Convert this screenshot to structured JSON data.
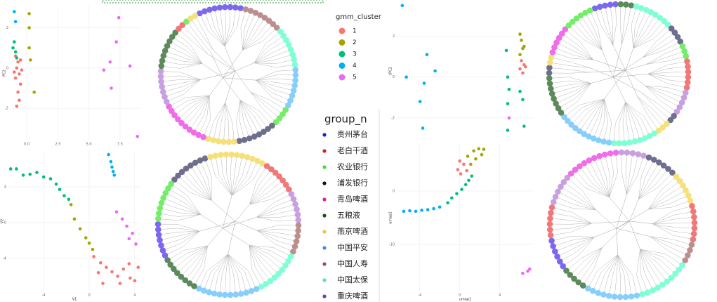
{
  "chart_data": [
    {
      "type": "scatter",
      "ylabel": "PC2",
      "xlim": [
        -1.3,
        9.14
      ],
      "ylim": [
        -3.6,
        3.1
      ],
      "xticks": [
        {
          "value": 0,
          "label": "0.0"
        },
        2.5,
        {
          "value": 5,
          "label": "5.0"
        },
        7.5
      ],
      "yticks": [
        -2,
        0,
        2
      ],
      "grid": true,
      "series": [
        {
          "color": "#F8766D",
          "x": [
            -0.9,
            -0.7,
            -0.8,
            -0.6,
            -0.9,
            -0.5,
            -0.7,
            -0.6,
            -0.8,
            -0.4,
            -1.0,
            -0.5
          ],
          "y": [
            0.6,
            0.3,
            0.0,
            -0.3,
            -0.5,
            -0.8,
            -1.2,
            -1.6,
            -1.9,
            -0.1,
            -0.2,
            0.4
          ]
        },
        {
          "color": "#A3A500",
          "x": [
            0.2,
            0.2,
            0.2,
            0.3,
            0.6
          ],
          "y": [
            2.7,
            2.0,
            1.0,
            0.4,
            -1.2
          ]
        },
        {
          "color": "#00BF7D",
          "x": [
            -1.0,
            -0.9,
            -1.1,
            -0.8
          ],
          "y": [
            1.3,
            0.8,
            1.0,
            0.5
          ]
        },
        {
          "color": "#00B0F6",
          "x": [
            -1.0,
            -0.9
          ],
          "y": [
            2.8,
            2.3
          ]
        },
        {
          "color": "#E76BF3",
          "x": [
            7.4,
            7.2,
            6.2,
            6.7,
            8.3,
            6.8,
            8.9
          ],
          "y": [
            2.5,
            1.3,
            -0.1,
            0.3,
            0.1,
            -1.0,
            -3.4
          ]
        }
      ]
    },
    {
      "type": "scatter",
      "xlabel": "V1",
      "ylabel": "V2",
      "xlim": [
        -7.1,
        4.5
      ],
      "ylim": [
        -7.7,
        8.0
      ],
      "xticks": [
        -4,
        0,
        4
      ],
      "yticks": [
        -4,
        0,
        4
      ],
      "grid": true,
      "series": [
        {
          "color": "#F8766D",
          "x": [
            0.4,
            1.0,
            1.5,
            2.0,
            2.5,
            3.0,
            3.5,
            4.0,
            1.2,
            2.7,
            3.6,
            0.8,
            4.3
          ],
          "y": [
            -3.8,
            -4.5,
            -5.0,
            -5.5,
            -6.0,
            -5.2,
            -4.6,
            -6.5,
            -6.8,
            -6.8,
            -6.2,
            -5.6,
            -5.0
          ]
        },
        {
          "color": "#A3A500",
          "x": [
            -1.6,
            -1.3,
            -0.8,
            -0.3,
            0.0,
            0.3
          ],
          "y": [
            2.0,
            0.4,
            -0.7,
            -1.7,
            -2.3,
            -3.0
          ]
        },
        {
          "color": "#00BF7D",
          "x": [
            -6.9,
            -6.4,
            -5.8,
            -5.2,
            -4.6,
            -4.0,
            -3.4,
            -2.9,
            -2.6,
            -2.2,
            -1.8
          ],
          "y": [
            6.0,
            6.0,
            5.3,
            5.4,
            5.6,
            5.1,
            4.9,
            4.3,
            3.7,
            3.0,
            2.6
          ]
        },
        {
          "color": "#00B0F6",
          "x": [
            1.7,
            1.9,
            2.0,
            2.1,
            2.2
          ],
          "y": [
            7.6,
            6.8,
            6.2,
            5.7,
            5.3
          ]
        },
        {
          "color": "#E76BF3",
          "x": [
            2.4,
            2.9,
            3.3,
            3.8,
            4.1,
            3.5
          ],
          "y": [
            1.2,
            0.4,
            -0.4,
            -1.2,
            -2.4,
            -1.8
          ]
        }
      ]
    },
    {
      "type": "scatter",
      "ylabel": "tPC2",
      "xlim": [
        0,
        10
      ],
      "ylim": [
        -3.1,
        3.7
      ],
      "yticks": [
        -2,
        0,
        2
      ],
      "grid": true,
      "series": [
        {
          "color": "#F8766D",
          "x": [
            9.1,
            9.3,
            9.0,
            9.2,
            9.4
          ],
          "y": [
            0.8,
            0.6,
            0.4,
            0.2,
            0.5
          ]
        },
        {
          "color": "#A3A500",
          "x": [
            9.0,
            9.1,
            9.2,
            9.0,
            9.3
          ],
          "y": [
            2.1,
            1.8,
            1.4,
            1.1,
            1.5
          ]
        },
        {
          "color": "#00BF7D",
          "x": [
            8.0,
            8.1,
            8.2,
            8.1,
            9.0,
            9.2,
            9.3,
            8.1
          ],
          "y": [
            1.3,
            0.0,
            -0.6,
            -1.3,
            -0.7,
            -1.1,
            -2.4,
            -2.6
          ]
        },
        {
          "color": "#00B0F6",
          "x": [
            0.4,
            0.7,
            2.2,
            2.8,
            2.0,
            1.7,
            1.9
          ],
          "y": [
            3.5,
            0.0,
            1.1,
            0.3,
            -0.3,
            -1.2,
            -2.5
          ]
        },
        {
          "color": "#E76BF3",
          "x": [
            8.2
          ],
          "y": [
            -2.0
          ]
        }
      ]
    },
    {
      "type": "scatter",
      "xlabel": "umap1",
      "ylabel": "umap2",
      "xlim": [
        -6.3,
        7.4
      ],
      "ylim": [
        -18.8,
        8.8
      ],
      "xticks": [
        -4,
        0,
        4
      ],
      "yticks": [
        -10,
        0
      ],
      "grid": true,
      "series": [
        {
          "color": "#F8766D",
          "x": [
            -0.2,
            0.1,
            0.4,
            0.7,
            0.0
          ],
          "y": [
            4.0,
            3.2,
            5.0,
            3.8,
            5.6
          ]
        },
        {
          "color": "#A3A500",
          "x": [
            0.8,
            1.4,
            1.9,
            2.4,
            1.6,
            1.1,
            2.2
          ],
          "y": [
            6.5,
            7.5,
            7.9,
            7.8,
            6.0,
            5.0,
            6.8
          ]
        },
        {
          "color": "#00BF7D",
          "x": [
            -1.2,
            -0.8,
            -0.3,
            0.2,
            0.6,
            0.9,
            1.2
          ],
          "y": [
            -2.2,
            -1.3,
            -0.5,
            0.3,
            1.2,
            2.0,
            2.8
          ]
        },
        {
          "color": "#00B0F6",
          "x": [
            -5.6,
            -5.0,
            -4.4,
            -3.8,
            -3.2,
            -2.6,
            -2.0
          ],
          "y": [
            -3.8,
            -3.7,
            -3.8,
            -3.6,
            -3.5,
            -3.3,
            -3.0
          ]
        },
        {
          "color": "#E76BF3",
          "x": [
            6.3,
            6.8,
            7.0
          ],
          "y": [
            -15.4,
            -15.0,
            -14.6
          ]
        }
      ]
    }
  ],
  "leaf_colors": [
    "#7b68ee",
    "#bc8f8f",
    "#7fffd4",
    "#87cefa",
    "#74ee6a",
    "#6e6e8e",
    "#f5e07a",
    "#f06ce8",
    "#c8a0e0",
    "#5d8a5d",
    "#f07878"
  ],
  "dendrograms": [
    {
      "start_angle": -25,
      "segments": [
        {
          "leaf": 0,
          "count": 9
        },
        {
          "leaf": 1,
          "count": 8
        },
        {
          "leaf": 2,
          "count": 8
        },
        {
          "leaf": 3,
          "count": 8
        },
        {
          "leaf": 4,
          "count": 4
        },
        {
          "leaf": 5,
          "count": 8
        },
        {
          "leaf": 6,
          "count": 6
        },
        {
          "leaf": 7,
          "count": 10
        },
        {
          "leaf": 8,
          "count": 7
        },
        {
          "leaf": 9,
          "count": 8
        },
        {
          "leaf": 10,
          "count": 2
        },
        {
          "leaf": 4,
          "count": 1
        },
        {
          "leaf": 6,
          "count": 2
        }
      ]
    },
    {
      "start_angle": -50,
      "segments": [
        {
          "leaf": 5,
          "count": 8
        },
        {
          "leaf": 6,
          "count": 11
        },
        {
          "leaf": 10,
          "count": 7
        },
        {
          "leaf": 8,
          "count": 6
        },
        {
          "leaf": 1,
          "count": 6
        },
        {
          "leaf": 2,
          "count": 9
        },
        {
          "leaf": 3,
          "count": 12
        },
        {
          "leaf": 9,
          "count": 8
        },
        {
          "leaf": 0,
          "count": 7
        },
        {
          "leaf": 4,
          "count": 8
        }
      ]
    },
    {
      "start_angle": -20,
      "segments": [
        {
          "leaf": 0,
          "count": 5
        },
        {
          "leaf": 9,
          "count": 3
        },
        {
          "leaf": 2,
          "count": 8
        },
        {
          "leaf": 5,
          "count": 4
        },
        {
          "leaf": 4,
          "count": 3
        },
        {
          "leaf": 10,
          "count": 6
        },
        {
          "leaf": 8,
          "count": 5
        },
        {
          "leaf": 5,
          "count": 2
        },
        {
          "leaf": 6,
          "count": 3
        },
        {
          "leaf": 2,
          "count": 9
        },
        {
          "leaf": 3,
          "count": 11
        },
        {
          "leaf": 9,
          "count": 8
        },
        {
          "leaf": 5,
          "count": 2
        },
        {
          "leaf": 6,
          "count": 2
        },
        {
          "leaf": 7,
          "count": 6
        },
        {
          "leaf": 4,
          "count": 6
        }
      ]
    },
    {
      "start_angle": -45,
      "segments": [
        {
          "leaf": 7,
          "count": 10
        },
        {
          "leaf": 8,
          "count": 5
        },
        {
          "leaf": 5,
          "count": 6
        },
        {
          "leaf": 6,
          "count": 6
        },
        {
          "leaf": 10,
          "count": 7
        },
        {
          "leaf": 1,
          "count": 4
        },
        {
          "leaf": 2,
          "count": 10
        },
        {
          "leaf": 3,
          "count": 10
        },
        {
          "leaf": 9,
          "count": 5
        },
        {
          "leaf": 0,
          "count": 6
        },
        {
          "leaf": 10,
          "count": 6
        },
        {
          "leaf": 8,
          "count": 6
        }
      ]
    }
  ],
  "legends": [
    {
      "title": "gmm_cluster",
      "items": [
        {
          "label": "1",
          "color": "#F8766D"
        },
        {
          "label": "2",
          "color": "#A3A500"
        },
        {
          "label": "3",
          "color": "#00BF7D"
        },
        {
          "label": "4",
          "color": "#00B0F6"
        },
        {
          "label": "5",
          "color": "#E76BF3"
        }
      ]
    },
    {
      "title": "group_n",
      "items": [
        {
          "label": "贵州茅台",
          "color": "#1f1fd6"
        },
        {
          "label": "老白干酒",
          "color": "#d61f1f"
        },
        {
          "label": "农业银行",
          "color": "#3ce03c"
        },
        {
          "label": "浦发银行",
          "color": "#111111"
        },
        {
          "label": "青岛啤酒",
          "color": "#e0229e"
        },
        {
          "label": "五粮液",
          "color": "#1d4d1d"
        },
        {
          "label": "燕京啤酒",
          "color": "#f5c431"
        },
        {
          "label": "中国平安",
          "color": "#3b8fd9"
        },
        {
          "label": "中国人寿",
          "color": "#9a5050"
        },
        {
          "label": "中国太保",
          "color": "#4fe3c3"
        },
        {
          "label": "重庆啤酒",
          "color": "#7340a8"
        }
      ]
    }
  ]
}
